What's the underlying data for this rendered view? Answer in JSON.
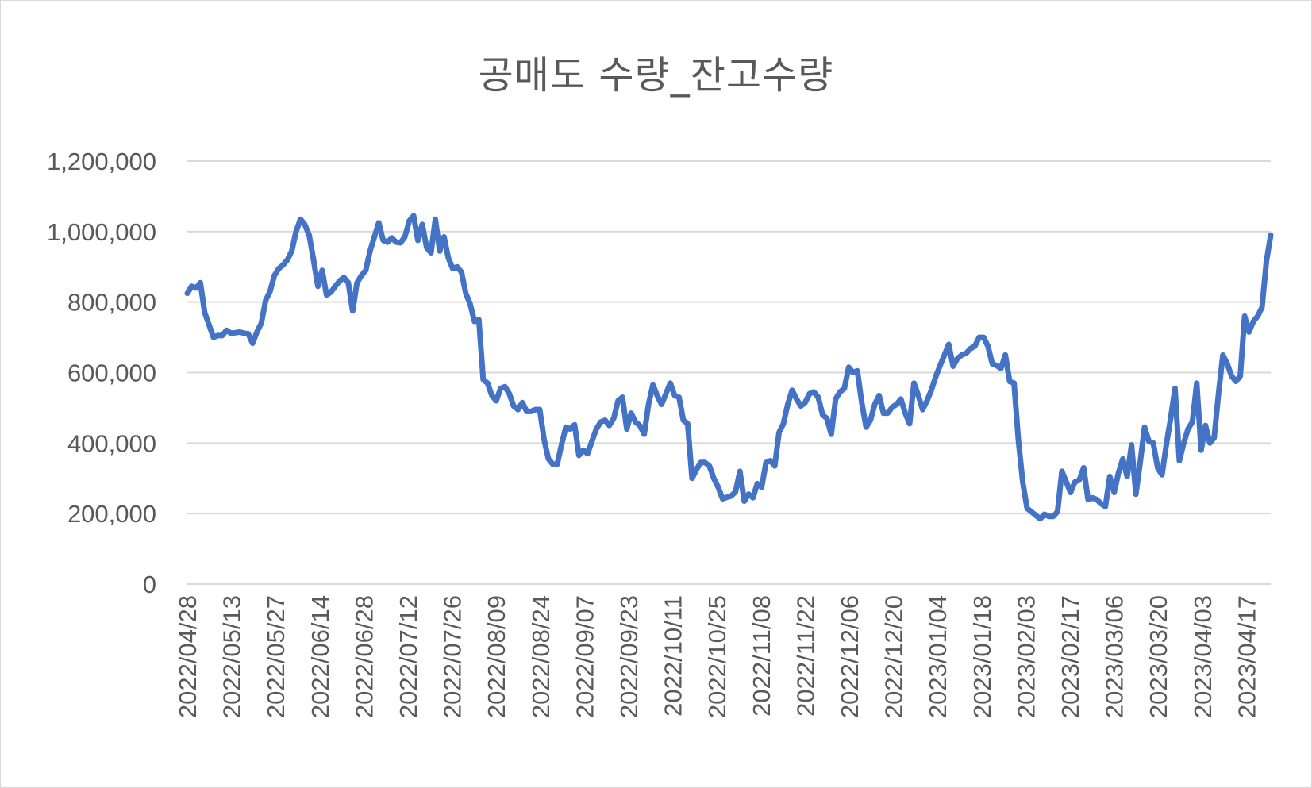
{
  "chart_data": {
    "type": "line",
    "title": "공매도 수량_잔고수량",
    "xlabel": "",
    "ylabel": "",
    "ylim": [
      0,
      1200000
    ],
    "y_ticks": [
      "0",
      "200,000",
      "400,000",
      "600,000",
      "800,000",
      "1,000,000",
      "1,200,000"
    ],
    "y_tick_values": [
      0,
      200000,
      400000,
      600000,
      800000,
      1000000,
      1200000
    ],
    "x_tick_labels": [
      "2022/04/28",
      "2022/05/13",
      "2022/05/27",
      "2022/06/14",
      "2022/06/28",
      "2022/07/12",
      "2022/07/26",
      "2022/08/09",
      "2022/08/24",
      "2022/09/07",
      "2022/09/23",
      "2022/10/11",
      "2022/10/25",
      "2022/11/08",
      "2022/11/22",
      "2022/12/06",
      "2022/12/20",
      "2023/01/04",
      "2023/01/18",
      "2023/02/03",
      "2023/02/17",
      "2023/03/06",
      "2023/03/20",
      "2023/04/03",
      "2023/04/17"
    ],
    "grid": true,
    "legend": "none",
    "line_color": "#4472c4",
    "series": [
      {
        "values": [
          825000,
          845000,
          840000,
          855000,
          770000,
          735000,
          700000,
          705000,
          705000,
          720000,
          712000,
          713000,
          715000,
          712000,
          710000,
          683000,
          715000,
          740000,
          805000,
          830000,
          875000,
          895000,
          905000,
          920000,
          945000,
          1000000,
          1035000,
          1020000,
          990000,
          920000,
          845000,
          890000,
          820000,
          828000,
          845000,
          860000,
          870000,
          855000,
          775000,
          855000,
          875000,
          890000,
          945000,
          985000,
          1025000,
          975000,
          970000,
          982000,
          970000,
          968000,
          985000,
          1030000,
          1045000,
          975000,
          1020000,
          955000,
          940000,
          1035000,
          945000,
          985000,
          925000,
          895000,
          900000,
          885000,
          825000,
          795000,
          745000,
          750000,
          580000,
          570000,
          535000,
          520000,
          555000,
          560000,
          540000,
          505000,
          495000,
          515000,
          490000,
          490000,
          495000,
          495000,
          410000,
          355000,
          340000,
          340000,
          395000,
          445000,
          440000,
          452000,
          365000,
          380000,
          370000,
          405000,
          440000,
          460000,
          465000,
          450000,
          470000,
          520000,
          530000,
          440000,
          485000,
          460000,
          450000,
          425000,
          510000,
          565000,
          535000,
          510000,
          540000,
          570000,
          535000,
          530000,
          465000,
          455000,
          300000,
          325000,
          345000,
          345000,
          335000,
          300000,
          275000,
          242000,
          246000,
          250000,
          262000,
          320000,
          235000,
          255000,
          245000,
          285000,
          275000,
          345000,
          350000,
          335000,
          430000,
          455000,
          510000,
          550000,
          525000,
          505000,
          515000,
          540000,
          545000,
          530000,
          480000,
          470000,
          425000,
          525000,
          545000,
          555000,
          615000,
          600000,
          605000,
          515000,
          445000,
          465000,
          510000,
          535000,
          485000,
          485000,
          502000,
          510000,
          525000,
          485000,
          455000,
          570000,
          535000,
          495000,
          520000,
          550000,
          588000,
          620000,
          650000,
          680000,
          618000,
          640000,
          650000,
          655000,
          668000,
          675000,
          700000,
          700000,
          675000,
          625000,
          620000,
          612000,
          650000,
          575000,
          570000,
          410000,
          290000,
          215000,
          205000,
          195000,
          185000,
          198000,
          192000,
          192000,
          205000,
          320000,
          290000,
          260000,
          290000,
          295000,
          330000,
          240000,
          245000,
          240000,
          228000,
          220000,
          305000,
          260000,
          315000,
          355000,
          305000,
          395000,
          255000,
          345000,
          445000,
          405000,
          400000,
          330000,
          310000,
          395000,
          470000,
          555000,
          350000,
          400000,
          440000,
          460000,
          570000,
          380000,
          450000,
          400000,
          415000,
          540000,
          650000,
          625000,
          590000,
          575000,
          590000,
          760000,
          715000,
          745000,
          760000,
          785000,
          915000,
          990000
        ]
      }
    ]
  }
}
